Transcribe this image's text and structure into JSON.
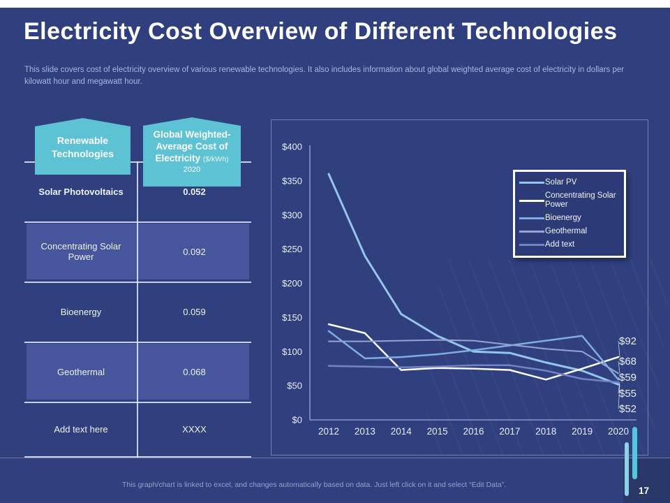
{
  "slide": {
    "title": "Electricity Cost Overview of Different Technologies",
    "subtitle": "This slide covers cost of electricity overview of various renewable technologies. It also includes information about global weighted average cost of electricity in dollars per kilowatt hour and megawatt hour.",
    "footer_note": "This graph/chart is linked to excel, and changes automatically based on data. Just left click on it and select “Edit Data”.",
    "page_number": "17"
  },
  "colors": {
    "background": "#30407F",
    "row_highlight": "#47569C",
    "header_teal": "#5EC2D5",
    "accent_bar_light": "#8AD3E5",
    "accent_bar_dark": "#55C6DF"
  },
  "table": {
    "header_left": {
      "title": "Renewable Technologies"
    },
    "header_right": {
      "title": "Global Weighted-Average Cost of Electricity",
      "unit": "($/kWh)",
      "year": "2020"
    },
    "rows": [
      {
        "label": "Solar Photovoltaics",
        "value": "0.052",
        "bold": true
      },
      {
        "label": "Concentrating Solar Power",
        "value": "0.092",
        "bold": false
      },
      {
        "label": "Bioenergy",
        "value": "0.059",
        "bold": false
      },
      {
        "label": "Geothermal",
        "value": "0.068",
        "bold": false
      },
      {
        "label": "Add text here",
        "value": "XXXX",
        "bold": false
      }
    ]
  },
  "chart_data": {
    "type": "line",
    "title": "",
    "xlabel": "",
    "ylabel": "",
    "x": [
      "2012",
      "2013",
      "2014",
      "2015",
      "2016",
      "2017",
      "2018",
      "2019",
      "2020"
    ],
    "ylim": [
      0,
      400
    ],
    "yticks": [
      400,
      350,
      300,
      250,
      200,
      150,
      100,
      50,
      0
    ],
    "ytick_prefix": "$",
    "grid": false,
    "legend_position": "upper-right",
    "series": [
      {
        "name": "Solar PV",
        "color": "#93C6EB",
        "width": 3,
        "values": [
          360,
          240,
          155,
          123,
          100,
          98,
          84,
          72,
          52
        ]
      },
      {
        "name": "Concentrating Solar Power",
        "color": "#FFFFFF",
        "width": 2.5,
        "values": [
          140,
          127,
          73,
          76,
          75,
          73,
          59,
          75,
          92
        ]
      },
      {
        "name": "Bioenergy",
        "color": "#7FADE3",
        "width": 2.5,
        "values": [
          130,
          90,
          92,
          96,
          102,
          109,
          116,
          123,
          59
        ]
      },
      {
        "name": "Geothermal",
        "color": "#94A4D5",
        "width": 2,
        "values": [
          115,
          115,
          116,
          117,
          116,
          110,
          104,
          100,
          68
        ]
      },
      {
        "name": "Add text",
        "color": "#7084C7",
        "width": 2.5,
        "values": [
          79,
          78,
          77,
          78,
          80,
          80,
          72,
          60,
          55
        ]
      }
    ],
    "end_labels": [
      {
        "text": "$92",
        "series": 1
      },
      {
        "text": "$68",
        "series": 3
      },
      {
        "text": "$59",
        "series": 2
      },
      {
        "text": "$55",
        "series": 4
      },
      {
        "text": "$52",
        "series": 0
      }
    ]
  }
}
